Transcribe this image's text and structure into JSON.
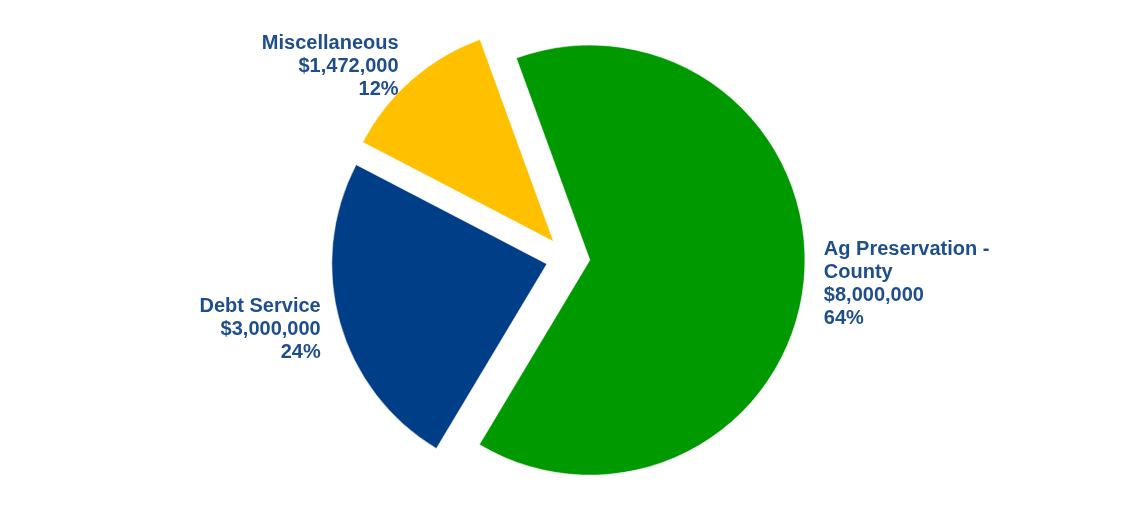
{
  "chart_data": {
    "type": "pie",
    "categories": [
      "Ag Preservation - County",
      "Debt Service",
      "Miscellaneous"
    ],
    "values": [
      8000000,
      3000000,
      1472000
    ],
    "colors": [
      "#009900",
      "#003f87",
      "#ffc000"
    ],
    "value_labels": [
      "$8,000,000\n64%",
      "$3,000,000\n24%",
      "$1,472,000\n12%"
    ]
  }
}
